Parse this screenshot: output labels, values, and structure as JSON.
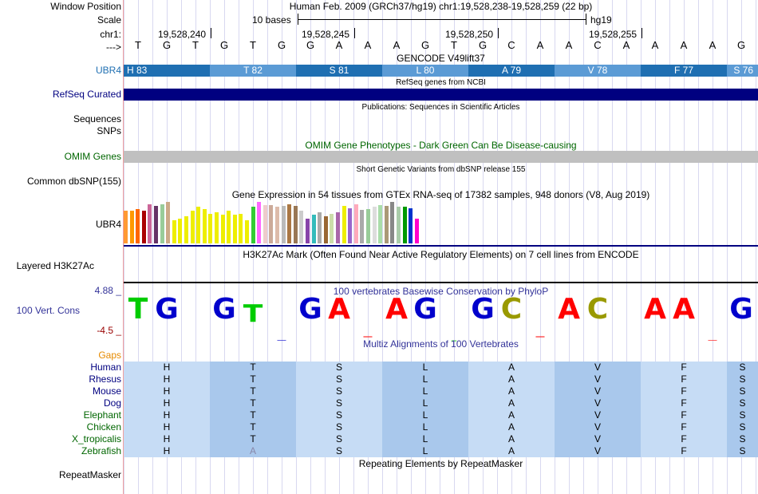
{
  "header": {
    "window_position_label": "Window Position",
    "scale_label": "Scale",
    "chrom_label": "chr1:",
    "arrow_label": "--->",
    "assembly_text": "Human Feb. 2009 (GRCh37/hg19)   chr1:19,528,238-19,528,259 (22 bp)",
    "scale_text": "10 bases",
    "db_text": "hg19",
    "coords": [
      "19,528,240",
      "19,528,245",
      "19,528,250",
      "19,528,255"
    ]
  },
  "sequence": [
    "T",
    "G",
    "T",
    "G",
    "T",
    "G",
    "G",
    "A",
    "A",
    "A",
    "G",
    "T",
    "G",
    "C",
    "A",
    "A",
    "C",
    "A",
    "A",
    "A",
    "A",
    "G"
  ],
  "tracks": {
    "gencode": {
      "title": "GENCODE V49lift37",
      "label": "UBR4",
      "exons": [
        "H 83",
        "T 82",
        "S 81",
        "L 80",
        "A 79",
        "V 78",
        "F 77",
        "S 76"
      ],
      "colors": [
        "#1f6fb2",
        "#5b9bd5"
      ]
    },
    "refseq": {
      "title": "RefSeq genes from NCBI",
      "label": "RefSeq Curated",
      "color": "#000080"
    },
    "publications": {
      "title": "Publications: Sequences in Scientific Articles",
      "label1": "Sequences",
      "label2": "SNPs"
    },
    "omim": {
      "title": "OMIM Gene Phenotypes - Dark Green Can Be Disease-causing",
      "label": "OMIM Genes",
      "color": "#c0c0c0"
    },
    "dbsnp": {
      "title": "Short Genetic Variants from dbSNP release 155",
      "label": "Common dbSNP(155)"
    },
    "gtex": {
      "title": "Gene Expression in 54 tissues from GTEx RNA-seq of 17382 samples, 948 donors (V8, Aug 2019)",
      "label": "UBR4",
      "bars": [
        {
          "v": 0.78,
          "c": "#ff9933"
        },
        {
          "v": 0.78,
          "c": "#ff9900"
        },
        {
          "v": 0.82,
          "c": "#ff6600"
        },
        {
          "v": 0.78,
          "c": "#aa0000"
        },
        {
          "v": 0.95,
          "c": "#cc6699"
        },
        {
          "v": 0.9,
          "c": "#663366"
        },
        {
          "v": 0.95,
          "c": "#99cc99"
        },
        {
          "v": 1.0,
          "c": "#ccaa88"
        },
        {
          "v": 0.55,
          "c": "#eeee00"
        },
        {
          "v": 0.6,
          "c": "#eeee00"
        },
        {
          "v": 0.65,
          "c": "#eeee00"
        },
        {
          "v": 0.78,
          "c": "#eeee00"
        },
        {
          "v": 0.88,
          "c": "#eeee00"
        },
        {
          "v": 0.82,
          "c": "#eeee00"
        },
        {
          "v": 0.72,
          "c": "#eeee00"
        },
        {
          "v": 0.75,
          "c": "#eeee00"
        },
        {
          "v": 0.7,
          "c": "#eeee00"
        },
        {
          "v": 0.78,
          "c": "#eeee00"
        },
        {
          "v": 0.7,
          "c": "#eeee00"
        },
        {
          "v": 0.72,
          "c": "#eeee00"
        },
        {
          "v": 0.55,
          "c": "#eeee00"
        },
        {
          "v": 0.88,
          "c": "#33cc33"
        },
        {
          "v": 1.0,
          "c": "#ff66ff"
        },
        {
          "v": 0.92,
          "c": "#eecccc"
        },
        {
          "v": 0.92,
          "c": "#ccaa99"
        },
        {
          "v": 0.88,
          "c": "#ddbbaa"
        },
        {
          "v": 0.9,
          "c": "#bbbbbb"
        },
        {
          "v": 0.95,
          "c": "#aa7744"
        },
        {
          "v": 0.9,
          "c": "#997755"
        },
        {
          "v": 0.78,
          "c": "#cccccc"
        },
        {
          "v": 0.6,
          "c": "#8844aa"
        },
        {
          "v": 0.7,
          "c": "#33bbbb"
        },
        {
          "v": 0.75,
          "c": "#aaaaaa"
        },
        {
          "v": 0.65,
          "c": "#996633"
        },
        {
          "v": 0.72,
          "c": "#ccddaa"
        },
        {
          "v": 0.75,
          "c": "#aa66aa"
        },
        {
          "v": 0.9,
          "c": "#eeee00"
        },
        {
          "v": 0.85,
          "c": "#9966cc"
        },
        {
          "v": 0.95,
          "c": "#ffaabb"
        },
        {
          "v": 0.8,
          "c": "#aaaaaa"
        },
        {
          "v": 0.82,
          "c": "#99cc99"
        },
        {
          "v": 0.88,
          "c": "#dddddd"
        },
        {
          "v": 0.92,
          "c": "#aaddaa"
        },
        {
          "v": 0.9,
          "c": "#aa9977"
        },
        {
          "v": 1.0,
          "c": "#888888"
        },
        {
          "v": 0.88,
          "c": "#aaccaa"
        },
        {
          "v": 0.88,
          "c": "#009900"
        },
        {
          "v": 0.85,
          "c": "#0033cc"
        },
        {
          "v": 0.6,
          "c": "#ff00cc"
        }
      ]
    },
    "h3k27ac": {
      "title": "H3K27Ac Mark (Often Found Near Active Regulatory Elements) on 7 cell lines from ENCODE",
      "label": "Layered H3K27Ac"
    },
    "phylop": {
      "title": "100 vertebrates Basewise Conservation by PhyloP",
      "label": "100 Vert. Cons",
      "max": "4.88 _",
      "min": "-4.5 _",
      "letters": [
        {
          "b": "T",
          "c": "#00cc00",
          "s": 1.0
        },
        {
          "b": "G",
          "c": "#0000cc",
          "s": 1.0
        },
        {
          "b": "",
          "c": "#cc0000",
          "s": 0.0
        },
        {
          "b": "G",
          "c": "#0000cc",
          "s": 1.0
        },
        {
          "b": "T",
          "c": "#00cc00",
          "s": 0.85
        },
        {
          "b": "-",
          "c": "#0000cc",
          "s": 0.1
        },
        {
          "b": "G",
          "c": "#0000cc",
          "s": 1.0
        },
        {
          "b": "A",
          "c": "#ff0000",
          "s": 1.0
        },
        {
          "b": "-",
          "c": "#ff0000",
          "s": 0.2
        },
        {
          "b": "A",
          "c": "#ff0000",
          "s": 1.0
        },
        {
          "b": "G",
          "c": "#0000cc",
          "s": 1.0
        },
        {
          "b": ".",
          "c": "#00cc00",
          "s": 0.1
        },
        {
          "b": "G",
          "c": "#0000cc",
          "s": 1.0
        },
        {
          "b": "C",
          "c": "#999900",
          "s": 1.0
        },
        {
          "b": "-",
          "c": "#ff0000",
          "s": 0.2
        },
        {
          "b": "A",
          "c": "#ff0000",
          "s": 1.0
        },
        {
          "b": "C",
          "c": "#999900",
          "s": 1.0
        },
        {
          "b": "",
          "c": "#ff0000",
          "s": 0.0
        },
        {
          "b": "A",
          "c": "#ff0000",
          "s": 1.0
        },
        {
          "b": "A",
          "c": "#ff0000",
          "s": 1.0
        },
        {
          "b": "-",
          "c": "#ff0000",
          "s": 0.1
        },
        {
          "b": "G",
          "c": "#0000cc",
          "s": 1.0
        }
      ]
    },
    "multiz": {
      "title": "Multiz Alignments of 100 Vertebrates",
      "gaps_label": "Gaps",
      "species": [
        {
          "name": "Human",
          "aa": [
            "H",
            "T",
            "S",
            "L",
            "A",
            "V",
            "F",
            "S"
          ]
        },
        {
          "name": "Rhesus",
          "aa": [
            "H",
            "T",
            "S",
            "L",
            "A",
            "V",
            "F",
            "S"
          ]
        },
        {
          "name": "Mouse",
          "aa": [
            "H",
            "T",
            "S",
            "L",
            "A",
            "V",
            "F",
            "S"
          ]
        },
        {
          "name": "Dog",
          "aa": [
            "H",
            "T",
            "S",
            "L",
            "A",
            "V",
            "F",
            "S"
          ]
        },
        {
          "name": "Elephant",
          "aa": [
            "H",
            "T",
            "S",
            "L",
            "A",
            "V",
            "F",
            "S"
          ]
        },
        {
          "name": "Chicken",
          "aa": [
            "H",
            "T",
            "S",
            "L",
            "A",
            "V",
            "F",
            "S"
          ]
        },
        {
          "name": "X_tropicalis",
          "aa": [
            "H",
            "T",
            "S",
            "L",
            "A",
            "V",
            "F",
            "S"
          ]
        },
        {
          "name": "Zebrafish",
          "aa": [
            "H",
            "A",
            "S",
            "L",
            "A",
            "V",
            "F",
            "S"
          ]
        }
      ]
    },
    "repeatmasker": {
      "title": "Repeating Elements by RepeatMasker",
      "label": "RepeatMasker"
    }
  },
  "colors": {
    "label_blue": "#1f6fb2",
    "label_navy": "#000080",
    "label_green": "#006600",
    "label_orange": "#e68a00",
    "label_darkblue": "#333399"
  }
}
